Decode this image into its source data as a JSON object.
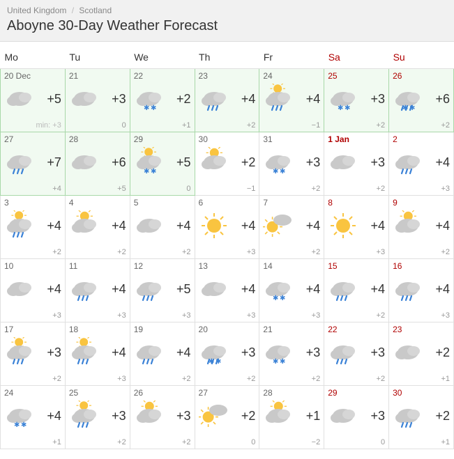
{
  "breadcrumb": {
    "country": "United Kingdom",
    "region": "Scotland",
    "separator": "/"
  },
  "title": "Aboyne 30-Day Weather Forecast",
  "headers": [
    {
      "label": "Mo",
      "weekend": false
    },
    {
      "label": "Tu",
      "weekend": false
    },
    {
      "label": "We",
      "weekend": false
    },
    {
      "label": "Th",
      "weekend": false
    },
    {
      "label": "Fr",
      "weekend": false
    },
    {
      "label": "Sa",
      "weekend": true
    },
    {
      "label": "Su",
      "weekend": true
    }
  ],
  "icons": {
    "cloudy": "cloudy",
    "snow": "snow",
    "rain": "rain",
    "partly-sun-rain": "partly-sun-rain",
    "sleet": "sleet",
    "partly-sun-snow": "partly-sun-snow",
    "partly-sun": "partly-sun",
    "sun": "sun",
    "partly-cloud-sun": "partly-cloud-sun"
  },
  "cells": [
    [
      {
        "day": "20 Dec",
        "hi": "+5",
        "lo": "min: +3",
        "icon": "cloudy",
        "hl": true,
        "red": false
      },
      {
        "day": "21",
        "hi": "+3",
        "lo": "0",
        "icon": "cloudy",
        "hl": true,
        "red": false
      },
      {
        "day": "22",
        "hi": "+2",
        "lo": "+1",
        "icon": "snow",
        "hl": true,
        "red": false
      },
      {
        "day": "23",
        "hi": "+4",
        "lo": "+2",
        "icon": "rain",
        "hl": true,
        "red": false
      },
      {
        "day": "24",
        "hi": "+4",
        "lo": "−1",
        "icon": "partly-sun-rain",
        "hl": true,
        "red": false
      },
      {
        "day": "25",
        "hi": "+3",
        "lo": "+2",
        "icon": "snow",
        "hl": true,
        "red": true
      },
      {
        "day": "26",
        "hi": "+6",
        "lo": "+2",
        "icon": "sleet",
        "hl": true,
        "red": true
      }
    ],
    [
      {
        "day": "27",
        "hi": "+7",
        "lo": "+4",
        "icon": "rain",
        "hl": true,
        "red": false
      },
      {
        "day": "28",
        "hi": "+6",
        "lo": "+5",
        "icon": "cloudy",
        "hl": true,
        "red": false
      },
      {
        "day": "29",
        "hi": "+5",
        "lo": "0",
        "icon": "partly-sun-snow",
        "hl": true,
        "red": false
      },
      {
        "day": "30",
        "hi": "+2",
        "lo": "−1",
        "icon": "partly-sun",
        "hl": false,
        "red": false
      },
      {
        "day": "31",
        "hi": "+3",
        "lo": "+2",
        "icon": "snow",
        "hl": false,
        "red": false
      },
      {
        "day": "1 Jan",
        "hi": "+3",
        "lo": "+2",
        "icon": "cloudy",
        "hl": false,
        "red": true,
        "bold": true
      },
      {
        "day": "2",
        "hi": "+4",
        "lo": "+3",
        "icon": "rain",
        "hl": false,
        "red": true
      }
    ],
    [
      {
        "day": "3",
        "hi": "+4",
        "lo": "+2",
        "icon": "partly-sun-rain",
        "hl": false,
        "red": false
      },
      {
        "day": "4",
        "hi": "+4",
        "lo": "+2",
        "icon": "partly-sun",
        "hl": false,
        "red": false
      },
      {
        "day": "5",
        "hi": "+4",
        "lo": "+2",
        "icon": "cloudy",
        "hl": false,
        "red": false
      },
      {
        "day": "6",
        "hi": "+4",
        "lo": "+3",
        "icon": "sun",
        "hl": false,
        "red": false
      },
      {
        "day": "7",
        "hi": "+4",
        "lo": "+2",
        "icon": "partly-cloud-sun",
        "hl": false,
        "red": false
      },
      {
        "day": "8",
        "hi": "+4",
        "lo": "+3",
        "icon": "sun",
        "hl": false,
        "red": true
      },
      {
        "day": "9",
        "hi": "+4",
        "lo": "+2",
        "icon": "partly-sun",
        "hl": false,
        "red": true
      }
    ],
    [
      {
        "day": "10",
        "hi": "+4",
        "lo": "+3",
        "icon": "cloudy",
        "hl": false,
        "red": false
      },
      {
        "day": "11",
        "hi": "+4",
        "lo": "+3",
        "icon": "rain",
        "hl": false,
        "red": false
      },
      {
        "day": "12",
        "hi": "+5",
        "lo": "+3",
        "icon": "rain",
        "hl": false,
        "red": false
      },
      {
        "day": "13",
        "hi": "+4",
        "lo": "+3",
        "icon": "cloudy",
        "hl": false,
        "red": false
      },
      {
        "day": "14",
        "hi": "+4",
        "lo": "+3",
        "icon": "snow",
        "hl": false,
        "red": false
      },
      {
        "day": "15",
        "hi": "+4",
        "lo": "+2",
        "icon": "rain",
        "hl": false,
        "red": true
      },
      {
        "day": "16",
        "hi": "+4",
        "lo": "+3",
        "icon": "rain",
        "hl": false,
        "red": true
      }
    ],
    [
      {
        "day": "17",
        "hi": "+3",
        "lo": "+2",
        "icon": "partly-sun-rain",
        "hl": false,
        "red": false
      },
      {
        "day": "18",
        "hi": "+4",
        "lo": "+3",
        "icon": "partly-sun-rain",
        "hl": false,
        "red": false
      },
      {
        "day": "19",
        "hi": "+4",
        "lo": "+2",
        "icon": "rain",
        "hl": false,
        "red": false
      },
      {
        "day": "20",
        "hi": "+3",
        "lo": "+2",
        "icon": "sleet",
        "hl": false,
        "red": false
      },
      {
        "day": "21",
        "hi": "+3",
        "lo": "+2",
        "icon": "snow",
        "hl": false,
        "red": false
      },
      {
        "day": "22",
        "hi": "+3",
        "lo": "+2",
        "icon": "rain",
        "hl": false,
        "red": true
      },
      {
        "day": "23",
        "hi": "+2",
        "lo": "+1",
        "icon": "cloudy",
        "hl": false,
        "red": true
      }
    ],
    [
      {
        "day": "24",
        "hi": "+4",
        "lo": "+1",
        "icon": "snow",
        "hl": false,
        "red": false
      },
      {
        "day": "25",
        "hi": "+3",
        "lo": "+2",
        "icon": "partly-sun-rain",
        "hl": false,
        "red": false
      },
      {
        "day": "26",
        "hi": "+3",
        "lo": "+2",
        "icon": "partly-sun",
        "hl": false,
        "red": false
      },
      {
        "day": "27",
        "hi": "+2",
        "lo": "0",
        "icon": "partly-cloud-sun",
        "hl": false,
        "red": false
      },
      {
        "day": "28",
        "hi": "+1",
        "lo": "−2",
        "icon": "partly-sun",
        "hl": false,
        "red": false
      },
      {
        "day": "29",
        "hi": "+3",
        "lo": "0",
        "icon": "cloudy",
        "hl": false,
        "red": true
      },
      {
        "day": "30",
        "hi": "+2",
        "lo": "+1",
        "icon": "rain",
        "hl": false,
        "red": true
      }
    ]
  ]
}
